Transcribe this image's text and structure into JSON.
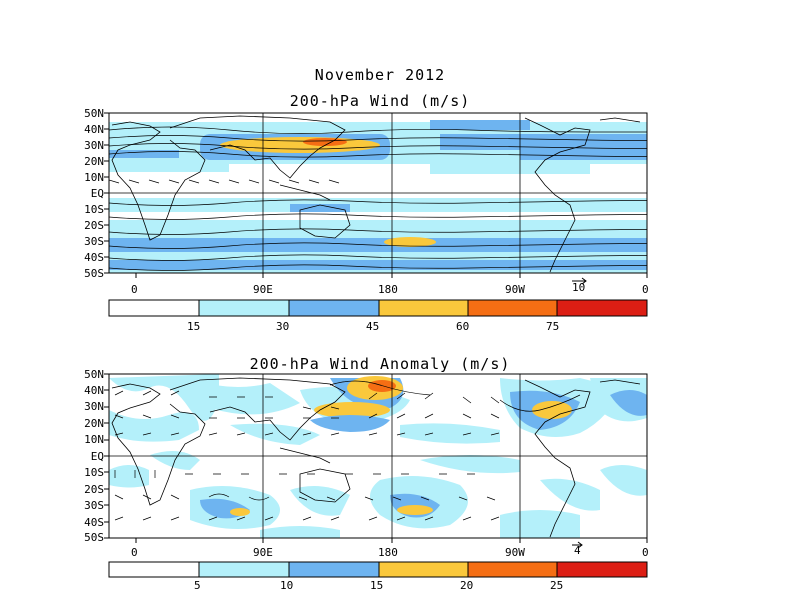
{
  "figure": {
    "title": "November 2012"
  },
  "panels": [
    {
      "title": "200-hPa Wind (m/s)",
      "lat_labels": [
        "50N",
        "40N",
        "30N",
        "20N",
        "10N",
        "EQ",
        "10S",
        "20S",
        "30S",
        "40S",
        "50S"
      ],
      "lon_labels": [
        "0",
        "90E",
        "180",
        "90W",
        "0"
      ],
      "ref_vector": "10",
      "colorbar": {
        "ticks": [
          "15",
          "30",
          "45",
          "60",
          "75"
        ],
        "colors": [
          "#ffffff",
          "#b4f0fa",
          "#6eb4f0",
          "#fac83c",
          "#f56e14",
          "#dc1e14"
        ]
      }
    },
    {
      "title": "200-hPa Wind Anomaly (m/s)",
      "lat_labels": [
        "50N",
        "40N",
        "30N",
        "20N",
        "10N",
        "EQ",
        "10S",
        "20S",
        "30S",
        "40S",
        "50S"
      ],
      "lon_labels": [
        "0",
        "90E",
        "180",
        "90W",
        "0"
      ],
      "ref_vector": "4",
      "colorbar": {
        "ticks": [
          "5",
          "10",
          "15",
          "20",
          "25"
        ],
        "colors": [
          "#ffffff",
          "#b4f0fa",
          "#6eb4f0",
          "#fac83c",
          "#f56e14",
          "#dc1e14"
        ]
      }
    }
  ]
}
